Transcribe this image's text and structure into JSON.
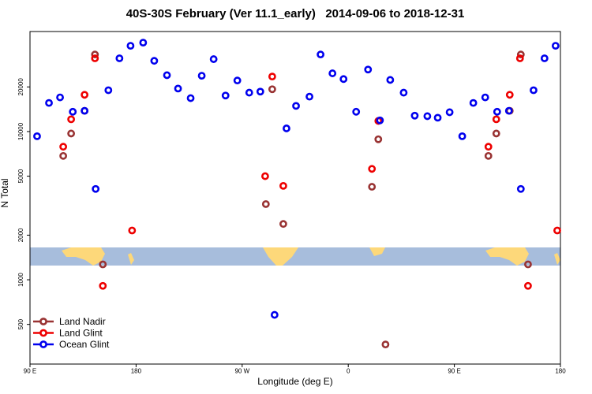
{
  "chart_data": {
    "type": "scatter",
    "title": "40S-30S February (Ver 11.1_early)   2014-09-06 to 2018-12-31",
    "xlabel": "Longitude (deg E)",
    "ylabel": "N Total",
    "xlim": [
      90,
      540
    ],
    "xticks": [
      {
        "value": 90,
        "label": "90 E"
      },
      180,
      {
        "value": 270,
        "label": "90 W"
      },
      {
        "value": 360,
        "label": "0"
      },
      {
        "value": 450,
        "label": "90 E"
      },
      {
        "value": 540,
        "label": "180"
      }
    ],
    "ylim": [
      270,
      47300
    ],
    "log_y": true,
    "yticks": [
      500,
      1000,
      2000,
      5000,
      10000,
      20000
    ],
    "legend": "bottom-left",
    "series": [
      {
        "name": "Land Nadir",
        "color": "#993333",
        "x": [
          118.2,
          124.9,
          136.3,
          145.1,
          151.8,
          290.1,
          295.5,
          304.9,
          380.1,
          385.5,
          391.6,
          478.9,
          485.6,
          497.0,
          506.4,
          512.5
        ],
        "values": [
          6850,
          9700,
          13800,
          33100,
          1270,
          3240,
          19300,
          2380,
          4240,
          8870,
          366,
          6850,
          9700,
          13800,
          33100,
          1270
        ]
      },
      {
        "name": "Land Glint",
        "color": "#ee0000",
        "x": [
          118.2,
          124.9,
          136.3,
          145.1,
          151.8,
          176.6,
          289.5,
          295.5,
          304.9,
          380.1,
          385.5,
          478.9,
          485.6,
          497.0,
          505.7,
          512.5,
          537.3
        ],
        "values": [
          7900,
          12100,
          17700,
          31200,
          910,
          2150,
          5000,
          23500,
          4300,
          5600,
          11800,
          7900,
          12100,
          17700,
          31200,
          910,
          2150
        ]
      },
      {
        "name": "Ocean Glint",
        "color": "#0000ee",
        "x": [
          96.0,
          106.1,
          115.5,
          126.3,
          136.3,
          145.7,
          156.5,
          165.9,
          175.3,
          186.0,
          195.4,
          206.2,
          215.6,
          226.3,
          235.7,
          245.8,
          255.9,
          265.9,
          276.0,
          285.4,
          297.5,
          307.6,
          315.7,
          327.1,
          336.5,
          346.6,
          356.0,
          366.7,
          376.8,
          386.9,
          395.6,
          407.0,
          416.4,
          427.1,
          435.9,
          446.0,
          456.7,
          466.1,
          476.2,
          486.3,
          496.3,
          506.4,
          517.2,
          526.5,
          535.9
        ],
        "values": [
          9300,
          15600,
          17000,
          13600,
          13800,
          4100,
          19000,
          31200,
          37900,
          39800,
          30000,
          24000,
          19500,
          16800,
          23800,
          30800,
          17500,
          22100,
          18300,
          18600,
          580,
          10500,
          14900,
          17200,
          33100,
          24700,
          22600,
          13600,
          26200,
          11900,
          22300,
          18300,
          12800,
          12700,
          12400,
          13500,
          9300,
          15600,
          17000,
          13600,
          13800,
          4100,
          19000,
          31200,
          37900
        ]
      }
    ]
  }
}
